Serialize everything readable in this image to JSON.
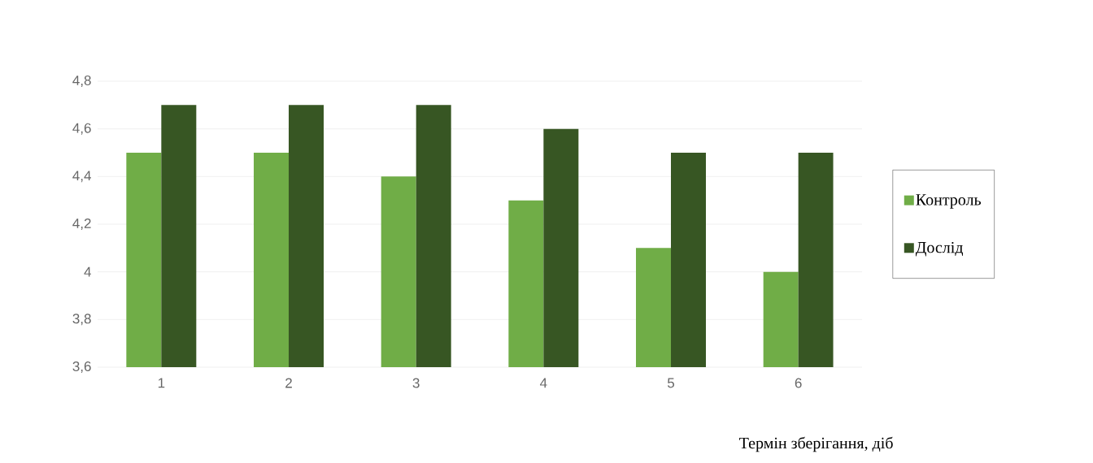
{
  "chart_data": {
    "type": "bar",
    "xlabel": "Термін зберігання, діб",
    "categories": [
      "1",
      "2",
      "3",
      "4",
      "5",
      "6"
    ],
    "series": [
      {
        "name": "Контроль",
        "color": "#70ad47",
        "values": [
          4.5,
          4.5,
          4.4,
          4.3,
          4.1,
          4.0
        ]
      },
      {
        "name": "Дослід",
        "color": "#375623",
        "values": [
          4.7,
          4.7,
          4.7,
          4.6,
          4.5,
          4.5
        ]
      }
    ],
    "ylim": [
      3.6,
      4.8
    ],
    "yticks": [
      {
        "value": 3.6,
        "label": "3,6"
      },
      {
        "value": 3.8,
        "label": "3,8"
      },
      4,
      {
        "value": 4.2,
        "label": "4,2"
      },
      {
        "value": 4.4,
        "label": "4,4"
      },
      {
        "value": 4.6,
        "label": "4,6"
      },
      {
        "value": 4.8,
        "label": "4,8"
      }
    ],
    "grid": "y",
    "legend": "right"
  }
}
